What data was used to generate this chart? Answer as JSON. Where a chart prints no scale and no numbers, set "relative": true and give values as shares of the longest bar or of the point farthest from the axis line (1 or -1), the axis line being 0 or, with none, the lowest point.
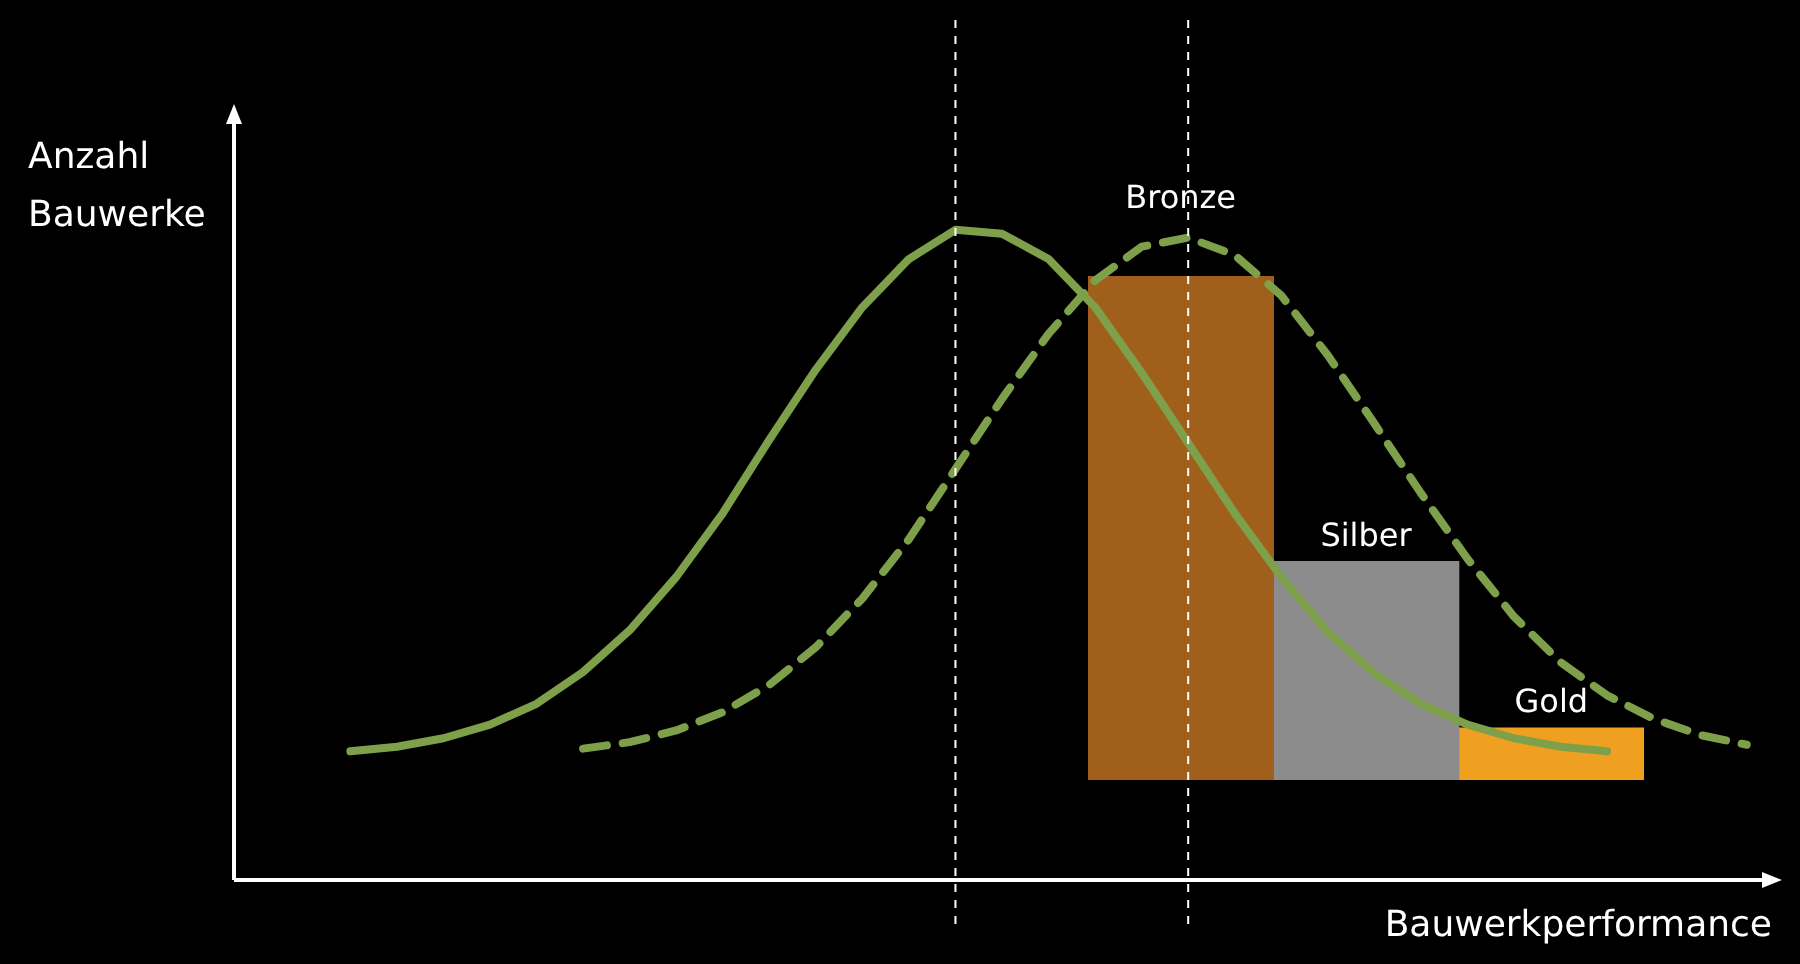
{
  "chart_data": [
    {
      "type": "line",
      "relative": true,
      "xlabel": "Bauwerkperformance",
      "ylabel": "Anzahl\nBauwerke",
      "legend": false,
      "marker": "none",
      "categories": [
        null,
        null,
        null,
        null,
        null,
        null,
        null,
        null,
        null,
        null,
        null,
        null,
        null,
        null,
        null,
        null,
        null,
        null,
        null,
        null,
        null,
        null,
        null,
        null,
        null,
        null,
        null,
        null,
        null,
        null,
        null,
        null,
        null
      ],
      "series": [
        {
          "color": "#7ea04a",
          "line_style": "solid",
          "values": [
            null,
            null,
            0.198,
            0.205,
            0.218,
            0.239,
            0.271,
            0.32,
            0.384,
            0.466,
            0.564,
            0.677,
            0.785,
            0.881,
            0.955,
            1,
            0.994,
            0.955,
            0.881,
            0.78,
            0.672,
            0.564,
            0.466,
            0.381,
            0.318,
            0.271,
            0.239,
            0.218,
            0.205,
            0.198,
            null,
            null,
            null
          ]
        },
        {
          "color": "#7ea04a",
          "line_style": "dashed",
          "values": [
            null,
            null,
            null,
            null,
            null,
            null,
            null,
            0.202,
            0.212,
            0.23,
            0.258,
            0.3,
            0.358,
            0.433,
            0.524,
            0.632,
            0.74,
            0.84,
            0.922,
            0.974,
            0.988,
            0.961,
            0.899,
            0.807,
            0.702,
            0.595,
            0.494,
            0.405,
            0.335,
            0.284,
            0.248,
            0.223,
            0.208
          ]
        }
      ]
    },
    {
      "type": "bar",
      "relative": true,
      "legend": false,
      "categories": [
        null
      ],
      "series": [
        {
          "name": "Bronze",
          "color": "#a0601c",
          "values": [
            1
          ]
        },
        {
          "name": "Silber",
          "color": "#8c8c8c",
          "values": [
            0.433
          ]
        },
        {
          "name": "Gold",
          "color": "#f0a020",
          "values": [
            0.103
          ]
        }
      ]
    }
  ]
}
